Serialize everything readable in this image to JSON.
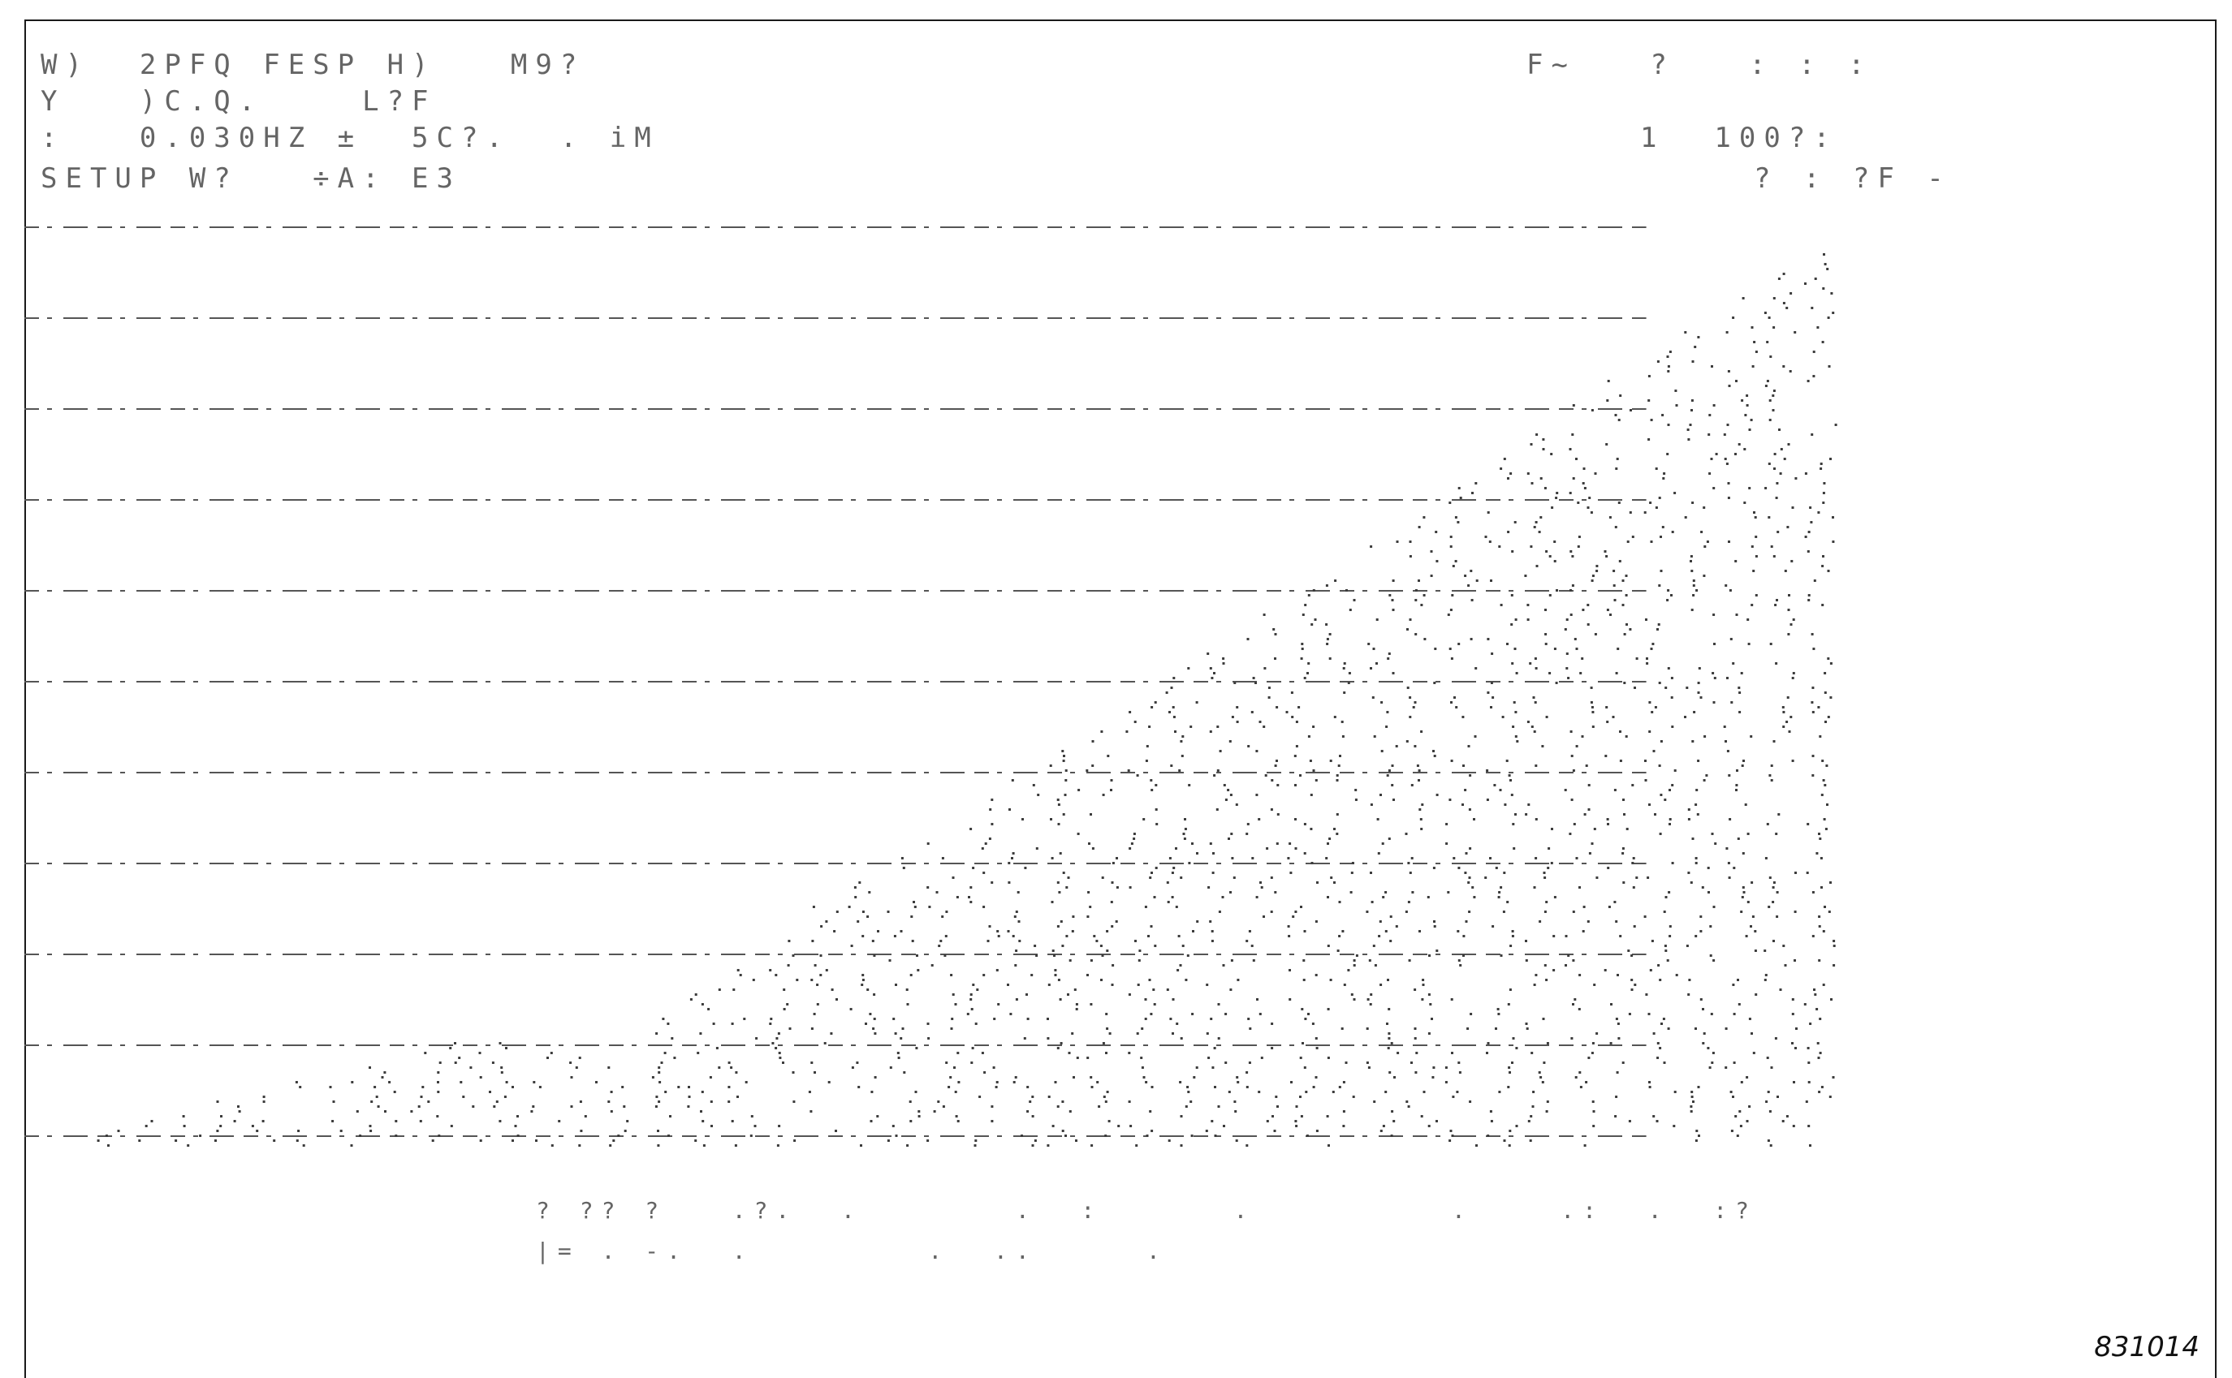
{
  "header": {
    "line1_left": "W)  2PFQ FESP H)   M9?",
    "line2_left": "Y   )C.Q.    L?F",
    "line3_left": ":   0.030HZ ±  5C?.  . iM",
    "line4_left": "SETUP W?   ÷A: E3",
    "line1_right": "F~   ?   : : :",
    "line3_right": "1  100?:",
    "line4_right": "? : ?F -"
  },
  "footer": {
    "line1": "? ?? ?   .?.  .       .  :      .         .    .:  .  :?",
    "line2": "|= . -.  .        .  ..     .                    ",
    "figure_id": "831014"
  },
  "display": {
    "dot_color": "#3c3c3c",
    "gridline_color": "#555555",
    "frame_color": "#1a1a1a"
  }
}
